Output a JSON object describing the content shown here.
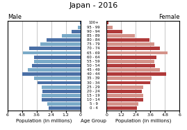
{
  "chart_data": {
    "type": "bar",
    "orientation": "horizontal",
    "title": "Japan - 2016",
    "xlabel": "Population (in millions)",
    "ylabel": "Age Group",
    "categories": [
      "0 - 4",
      "5 - 9",
      "10 - 14",
      "15 - 19",
      "20 - 24",
      "25 - 29",
      "30 - 34",
      "35 - 39",
      "40 - 44",
      "45 - 49",
      "50 - 54",
      "55 - 59",
      "60 - 64",
      "65 - 69",
      "70 - 74",
      "75 - 79",
      "80 - 84",
      "85 - 89",
      "90 - 94",
      "95 - 99",
      "100+"
    ],
    "series": [
      {
        "name": "Male",
        "colors": [
          "#4a6fa5",
          "#7aaac8",
          "#4a6fa5",
          "#7aaac8",
          "#4a6fa5",
          "#7aaac8",
          "#4a6fa5",
          "#7aaac8",
          "#4a6fa5",
          "#7aaac8",
          "#4a6fa5",
          "#7aaac8",
          "#4a6fa5",
          "#7aaac8",
          "#4a6fa5",
          "#7aaac8",
          "#4a6fa5",
          "#7aaac8",
          "#4a6fa5",
          "#7aaac8",
          "#4a6fa5"
        ],
        "values": [
          2.6,
          2.7,
          3.2,
          3.2,
          3.1,
          3.2,
          3.5,
          3.8,
          4.8,
          4.3,
          4.0,
          3.8,
          3.8,
          4.7,
          4.2,
          3.3,
          2.8,
          1.5,
          0.7,
          0.2,
          0.05
        ]
      },
      {
        "name": "Female",
        "colors": [
          "#b03a3a",
          "#d4938a",
          "#b03a3a",
          "#d4938a",
          "#b03a3a",
          "#d4938a",
          "#b03a3a",
          "#d4938a",
          "#b03a3a",
          "#d4938a",
          "#b03a3a",
          "#d4938a",
          "#b03a3a",
          "#d4938a",
          "#b03a3a",
          "#d4938a",
          "#b03a3a",
          "#d4938a",
          "#b03a3a",
          "#d4938a",
          "#b03a3a"
        ],
        "values": [
          2.5,
          2.6,
          3.0,
          3.0,
          2.9,
          3.0,
          3.6,
          3.7,
          4.9,
          4.4,
          4.0,
          3.9,
          4.1,
          5.0,
          4.4,
          3.9,
          3.5,
          2.3,
          1.3,
          0.5,
          0.15
        ]
      }
    ],
    "xlim": [
      0,
      6.0
    ],
    "xticks": [
      0,
      1.2,
      2.4,
      3.6,
      4.8,
      6
    ],
    "grid": true
  }
}
